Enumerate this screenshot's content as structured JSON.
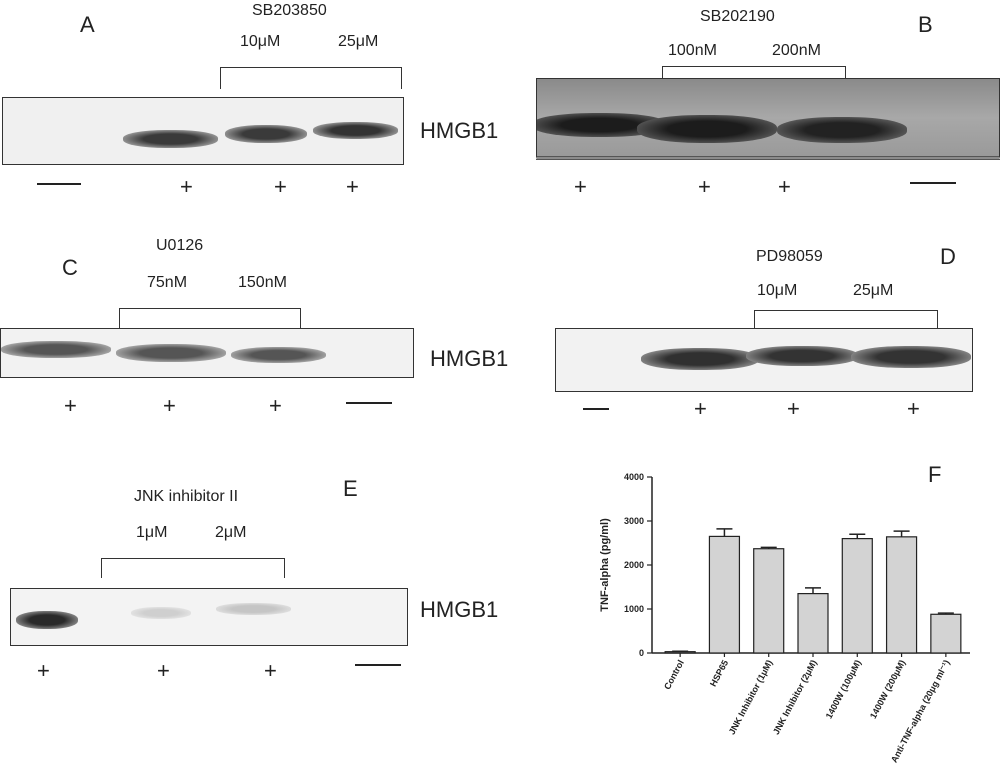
{
  "panel_a": {
    "letter": "A",
    "drug": "SB203850",
    "conc": [
      "10μM",
      "25μM"
    ],
    "protein": "HMGB1",
    "lanes": [
      "—",
      "+",
      "+",
      "+"
    ]
  },
  "panel_b": {
    "letter": "B",
    "drug": "SB202190",
    "conc": [
      "100nM",
      "200nM"
    ],
    "lanes": [
      "+",
      "+",
      "+",
      "—"
    ]
  },
  "panel_c": {
    "letter": "C",
    "drug": "U0126",
    "conc": [
      "75nM",
      "150nM"
    ],
    "protein": "HMGB1",
    "lanes": [
      "+",
      "+",
      "+",
      "—"
    ]
  },
  "panel_d": {
    "letter": "D",
    "drug": "PD98059",
    "conc": [
      "10μM",
      "25μM"
    ],
    "lanes": [
      "—",
      "+",
      "+",
      "+"
    ]
  },
  "panel_e": {
    "letter": "E",
    "drug": "JNK inhibitor II",
    "conc": [
      "1μM",
      "2μM"
    ],
    "protein": "HMGB1",
    "lanes": [
      "+",
      "+",
      "+",
      "—"
    ]
  },
  "panel_f": {
    "letter": "F"
  },
  "chart_data": {
    "type": "bar",
    "categories": [
      "Control",
      "HSP65",
      "JNK Inhibitor (1μM)",
      "JNK Inhibitor (2μM)",
      "1400W (100μM)",
      "1400W (200μM)",
      "Anti-TNF-alpha (20μg ml⁻¹)"
    ],
    "values": [
      30,
      2650,
      2370,
      1350,
      2600,
      2640,
      880
    ],
    "errors": [
      10,
      170,
      30,
      130,
      100,
      130,
      25
    ],
    "ylabel": "TNF-alpha (pg/ml)",
    "ylim": [
      0,
      4000
    ],
    "yticks": [
      "0",
      "1000",
      "2000",
      "3000",
      "4000"
    ],
    "bar_color": "#d3d3d3",
    "grid": false
  }
}
